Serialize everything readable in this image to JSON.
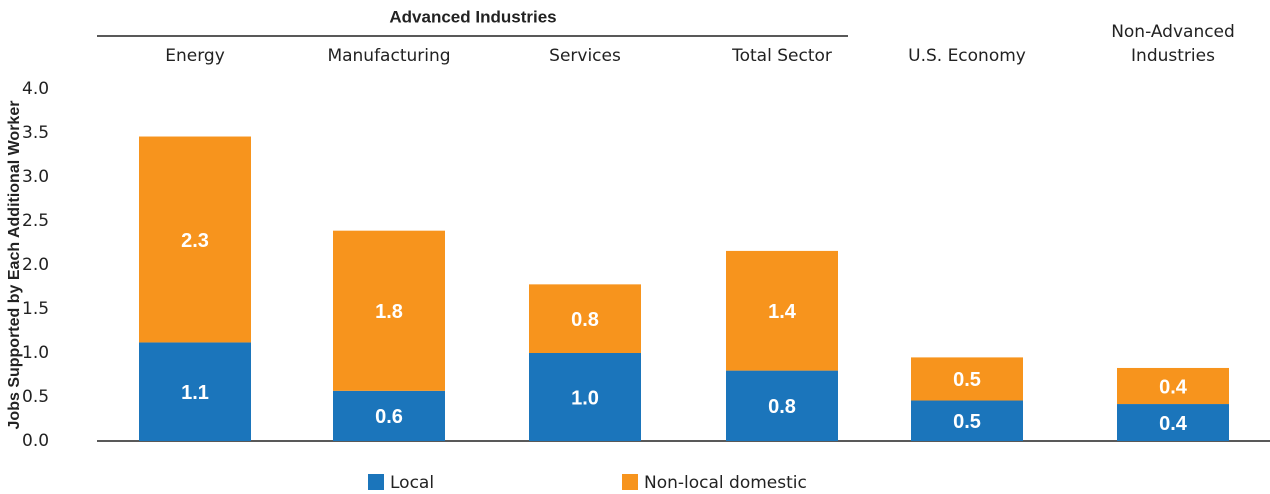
{
  "chart_data": {
    "type": "stacked_bar",
    "group_label": "Advanced Industries",
    "categories": [
      "Energy",
      "Manufacturing",
      "Services",
      "Total Sector",
      "U.S. Economy",
      "Non-Advanced\nIndustries"
    ],
    "series": [
      {
        "name": "Local",
        "color": "#1b75bb",
        "values": [
          1.12,
          0.57,
          1.0,
          0.8,
          0.46,
          0.42
        ],
        "value_labels": [
          "1.1",
          "0.6",
          "1.0",
          "0.8",
          "0.5",
          "0.4"
        ]
      },
      {
        "name": "Non-local domestic",
        "color": "#f7941d",
        "values": [
          2.34,
          1.82,
          0.78,
          1.36,
          0.49,
          0.41
        ],
        "value_labels": [
          "2.3",
          "1.8",
          "0.8",
          "1.4",
          "0.5",
          "0.4"
        ]
      }
    ],
    "y_label": "Jobs Supported by Each Additional Worker",
    "ylim": [
      0,
      4
    ],
    "yticks": [
      {
        "value": 0,
        "label": "0.0"
      },
      0.5,
      {
        "value": 1,
        "label": "1.0"
      },
      1.5,
      {
        "value": 2,
        "label": "2.0"
      },
      2.5,
      {
        "value": 3,
        "label": "3.0"
      },
      3.5,
      {
        "value": 4,
        "label": "4.0"
      }
    ]
  }
}
